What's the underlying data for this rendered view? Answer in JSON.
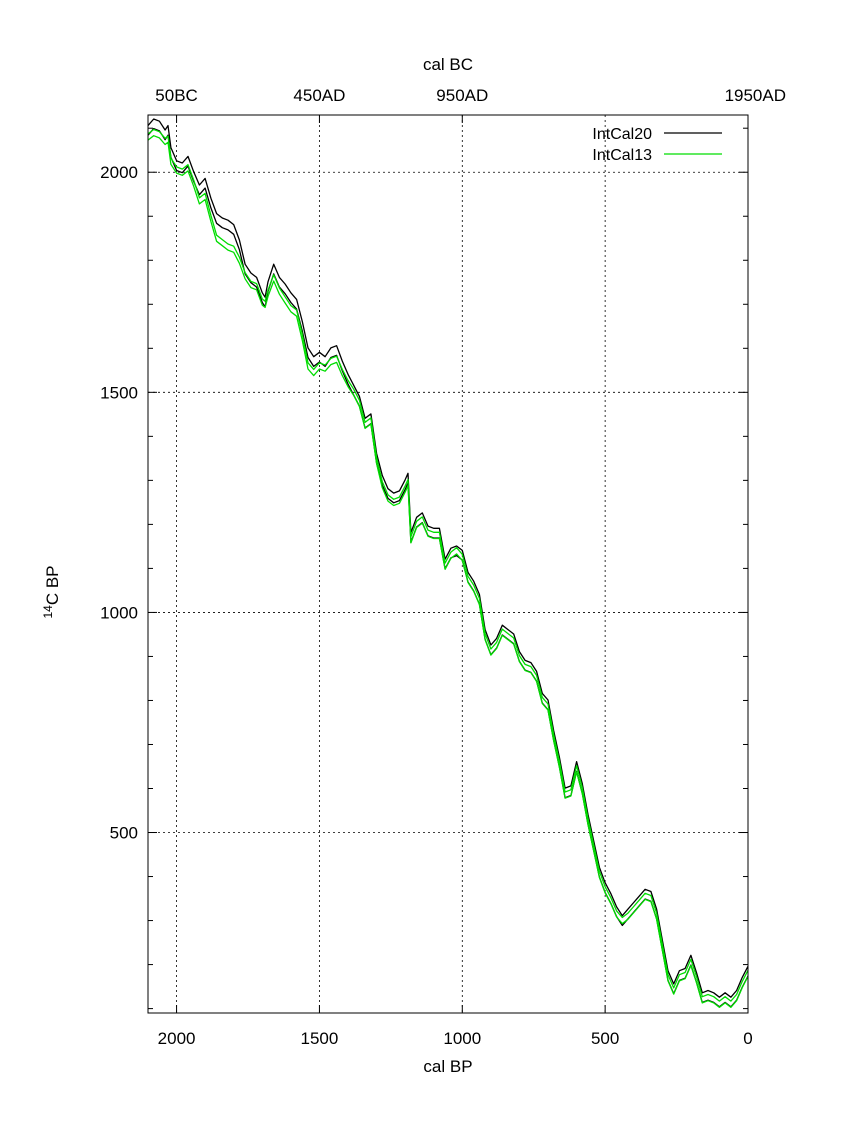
{
  "chart_data": {
    "type": "line",
    "title": "",
    "xlabel": "cal BP",
    "ylabel_base": "C BP",
    "ylabel_sup": "14",
    "top_axis_label": "cal BC",
    "xlim": [
      2100,
      0
    ],
    "ylim": [
      90,
      2130
    ],
    "x_reversed": true,
    "grid": true,
    "legend_position": "top-right",
    "x_ticks": [
      {
        "value": 2000,
        "label": "2000"
      },
      {
        "value": 1500,
        "label": "1500"
      },
      {
        "value": 1000,
        "label": "1000"
      },
      {
        "value": 500,
        "label": "500"
      },
      {
        "value": 0,
        "label": "0"
      }
    ],
    "y_ticks": [
      {
        "value": 500,
        "label": "500"
      },
      {
        "value": 1000,
        "label": "1000"
      },
      {
        "value": 1500,
        "label": "1500"
      },
      {
        "value": 2000,
        "label": "2000"
      }
    ],
    "y_minor_step": 100,
    "top_ticks": [
      {
        "value": 2000,
        "label": "50BC"
      },
      {
        "value": 1500,
        "label": "450AD"
      },
      {
        "value": 1000,
        "label": "950AD"
      },
      {
        "value": 0,
        "label": "1950AD"
      }
    ],
    "series": [
      {
        "name": "IntCal20",
        "color": "#000000",
        "band": true,
        "band_width": 22,
        "x": [
          2100,
          2080,
          2060,
          2040,
          2030,
          2020,
          2000,
          1980,
          1960,
          1940,
          1920,
          1900,
          1880,
          1860,
          1840,
          1820,
          1800,
          1780,
          1760,
          1740,
          1720,
          1700,
          1690,
          1680,
          1660,
          1640,
          1620,
          1600,
          1580,
          1560,
          1540,
          1520,
          1500,
          1480,
          1460,
          1440,
          1420,
          1400,
          1380,
          1360,
          1340,
          1320,
          1300,
          1280,
          1260,
          1240,
          1220,
          1200,
          1190,
          1180,
          1160,
          1140,
          1120,
          1100,
          1080,
          1060,
          1040,
          1020,
          1000,
          980,
          960,
          940,
          920,
          900,
          880,
          860,
          840,
          820,
          800,
          780,
          760,
          740,
          720,
          700,
          680,
          660,
          640,
          620,
          600,
          580,
          560,
          540,
          520,
          500,
          480,
          460,
          440,
          420,
          400,
          380,
          360,
          340,
          320,
          300,
          280,
          260,
          240,
          220,
          200,
          180,
          160,
          140,
          120,
          100,
          80,
          60,
          40,
          20,
          0
        ],
        "y": [
          2095,
          2110,
          2105,
          2085,
          2095,
          2045,
          2015,
          2010,
          2025,
          1990,
          1960,
          1975,
          1930,
          1895,
          1885,
          1880,
          1870,
          1835,
          1780,
          1760,
          1750,
          1715,
          1705,
          1740,
          1780,
          1750,
          1735,
          1715,
          1700,
          1650,
          1590,
          1570,
          1580,
          1570,
          1590,
          1595,
          1560,
          1530,
          1505,
          1480,
          1430,
          1440,
          1350,
          1300,
          1270,
          1260,
          1265,
          1290,
          1305,
          1170,
          1205,
          1215,
          1185,
          1180,
          1180,
          1110,
          1135,
          1140,
          1130,
          1080,
          1060,
          1030,
          950,
          915,
          930,
          960,
          950,
          940,
          900,
          880,
          875,
          855,
          805,
          790,
          720,
          660,
          590,
          595,
          650,
          600,
          530,
          470,
          410,
          375,
          350,
          320,
          300,
          315,
          330,
          345,
          360,
          355,
          315,
          245,
          175,
          145,
          175,
          180,
          210,
          170,
          125,
          130,
          125,
          115,
          125,
          115,
          130,
          160,
          185
        ]
      },
      {
        "name": "IntCal13",
        "color": "#00dd00",
        "band": true,
        "band_width": 14,
        "x": [
          2100,
          2080,
          2060,
          2040,
          2030,
          2020,
          2000,
          1980,
          1960,
          1940,
          1920,
          1900,
          1880,
          1860,
          1840,
          1820,
          1800,
          1780,
          1760,
          1740,
          1720,
          1700,
          1690,
          1680,
          1660,
          1640,
          1620,
          1600,
          1580,
          1560,
          1540,
          1520,
          1500,
          1480,
          1460,
          1440,
          1420,
          1400,
          1380,
          1360,
          1340,
          1320,
          1300,
          1280,
          1260,
          1240,
          1220,
          1200,
          1190,
          1180,
          1160,
          1140,
          1120,
          1100,
          1080,
          1060,
          1040,
          1020,
          1000,
          980,
          960,
          940,
          920,
          900,
          880,
          860,
          840,
          820,
          800,
          780,
          760,
          740,
          720,
          700,
          680,
          660,
          640,
          620,
          600,
          580,
          560,
          540,
          520,
          500,
          480,
          460,
          440,
          420,
          400,
          380,
          360,
          340,
          320,
          300,
          280,
          260,
          240,
          220,
          200,
          180,
          160,
          140,
          120,
          100,
          80,
          60,
          40,
          20,
          0
        ],
        "y": [
          2080,
          2090,
          2085,
          2070,
          2075,
          2025,
          2005,
          2000,
          2010,
          1975,
          1935,
          1945,
          1895,
          1850,
          1840,
          1830,
          1825,
          1800,
          1765,
          1745,
          1740,
          1705,
          1700,
          1725,
          1760,
          1730,
          1710,
          1690,
          1680,
          1625,
          1560,
          1545,
          1560,
          1555,
          1570,
          1575,
          1545,
          1520,
          1500,
          1475,
          1425,
          1435,
          1345,
          1290,
          1260,
          1250,
          1255,
          1280,
          1295,
          1165,
          1200,
          1210,
          1180,
          1175,
          1175,
          1105,
          1130,
          1140,
          1125,
          1075,
          1055,
          1025,
          945,
          910,
          925,
          955,
          945,
          935,
          895,
          875,
          870,
          850,
          800,
          785,
          715,
          655,
          585,
          590,
          645,
          595,
          525,
          465,
          405,
          370,
          345,
          315,
          300,
          310,
          325,
          340,
          355,
          350,
          310,
          240,
          170,
          140,
          170,
          175,
          205,
          165,
          120,
          125,
          120,
          110,
          120,
          110,
          125,
          155,
          180
        ]
      }
    ]
  }
}
